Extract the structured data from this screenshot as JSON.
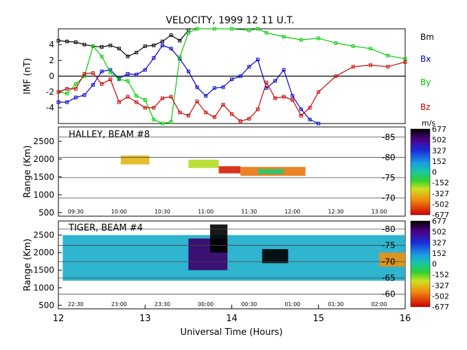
{
  "chart_data": {
    "type": "line",
    "title": "VELOCITY, 1999 12 11 U.T.",
    "xlabel": "Universal Time (Hours)",
    "xlim": [
      12,
      16
    ],
    "x_ticks": [
      "12",
      "13",
      "14",
      "15",
      "16"
    ],
    "panels": [
      {
        "id": "imf",
        "type": "line",
        "ylabel": "IMF (nT)",
        "ylim": [
          -6,
          6
        ],
        "y_ticks": [
          "4",
          "2",
          "0",
          "-2",
          "-4"
        ],
        "zero_line": true,
        "series": [
          {
            "name": "Bm",
            "color": "#000000",
            "x": [
              12.0,
              12.1,
              12.2,
              12.3,
              12.4,
              12.5,
              12.6,
              12.7,
              12.8,
              12.9,
              13.0,
              13.1,
              13.2,
              13.3,
              13.4,
              13.5
            ],
            "y": [
              4.5,
              4.4,
              4.3,
              4.0,
              3.8,
              3.7,
              3.9,
              3.5,
              2.5,
              3.0,
              3.8,
              3.9,
              4.4,
              5.2,
              4.5,
              5.8
            ]
          },
          {
            "name": "Bx",
            "color": "#0000cc",
            "x": [
              12.0,
              12.1,
              12.2,
              12.3,
              12.4,
              12.5,
              12.6,
              12.7,
              12.8,
              12.9,
              13.0,
              13.1,
              13.2,
              13.3,
              13.4,
              13.5,
              13.6,
              13.7,
              13.8,
              13.9,
              14.0,
              14.1,
              14.2,
              14.3,
              14.4,
              14.5,
              14.6,
              14.7,
              14.8,
              14.9,
              15.0
            ],
            "y": [
              -3.3,
              -3.3,
              -2.7,
              -2.4,
              -1.1,
              0.6,
              0.8,
              -0.3,
              0.3,
              0.2,
              0.8,
              2.3,
              3.9,
              3.5,
              2.2,
              0.6,
              -1.4,
              -2.5,
              -1.5,
              -1.4,
              -0.4,
              0.0,
              1.2,
              2.1,
              -1.5,
              -0.6,
              0.8,
              -2.5,
              -4.2,
              -5.5,
              -6.0
            ]
          },
          {
            "name": "By",
            "color": "#00cc00",
            "x": [
              12.0,
              12.1,
              12.2,
              12.3,
              12.4,
              12.5,
              12.6,
              12.7,
              12.8,
              12.9,
              13.0,
              13.1,
              13.2,
              13.3,
              13.4,
              13.5,
              13.6,
              13.8,
              14.0,
              14.2,
              14.3,
              14.4,
              14.6,
              14.8,
              15.0,
              15.2,
              15.4,
              15.6,
              15.8,
              16.0
            ],
            "y": [
              -2.0,
              -2.2,
              -1.0,
              0.0,
              3.8,
              2.5,
              0.5,
              -0.4,
              -0.6,
              -2.5,
              -3.0,
              -5.5,
              -6.0,
              -5.8,
              2.4,
              5.5,
              6.0,
              6.0,
              6.0,
              5.8,
              6.0,
              5.5,
              5.0,
              4.6,
              4.8,
              4.2,
              3.8,
              3.5,
              2.6,
              2.2
            ]
          },
          {
            "name": "Bz",
            "color": "#cc0000",
            "x": [
              12.0,
              12.1,
              12.2,
              12.3,
              12.4,
              12.5,
              12.6,
              12.7,
              12.8,
              12.9,
              13.0,
              13.1,
              13.2,
              13.3,
              13.4,
              13.5,
              13.6,
              13.7,
              13.8,
              13.9,
              14.0,
              14.1,
              14.2,
              14.3,
              14.4,
              14.5,
              14.6,
              14.7,
              14.8,
              14.9,
              15.0,
              15.2,
              15.4,
              15.6,
              15.8,
              16.0
            ],
            "y": [
              -2.0,
              -1.6,
              -1.6,
              0.3,
              0.4,
              -1.0,
              -0.4,
              -3.3,
              -2.6,
              -3.3,
              -4.0,
              -4.0,
              -2.8,
              -2.6,
              -4.6,
              -5.0,
              -3.2,
              -4.6,
              -5.2,
              -3.6,
              -4.8,
              -5.7,
              -5.4,
              -4.2,
              -0.8,
              -2.8,
              -2.6,
              -3.0,
              -5.0,
              -4.0,
              -2.0,
              0.0,
              1.2,
              1.4,
              1.2,
              1.8
            ]
          }
        ]
      },
      {
        "id": "halley",
        "type": "heatmap",
        "title": "HALLEY, BEAM #8",
        "ylabel": "Range (Km)",
        "ylim": [
          400,
          2900
        ],
        "y_ticks": [
          "2500",
          "2000",
          "1500",
          "1000",
          "500"
        ],
        "right_labels": [
          "-85",
          "-80",
          "-75",
          "-70"
        ],
        "time_labels": [
          "09:30",
          "10:00",
          "10:30",
          "11:00",
          "11:30",
          "12:00",
          "12:30",
          "13:00"
        ],
        "echoes": [
          {
            "t0": 12.72,
            "t1": 13.05,
            "r0": 1850,
            "r1": 2100,
            "value": -300
          },
          {
            "t0": 13.5,
            "t1": 13.85,
            "r0": 1750,
            "r1": 1980,
            "value": -180
          },
          {
            "t0": 13.85,
            "t1": 14.1,
            "r0": 1600,
            "r1": 1800,
            "value": -620
          },
          {
            "t0": 14.1,
            "t1": 14.85,
            "r0": 1530,
            "r1": 1780,
            "value": -450
          },
          {
            "t0": 14.3,
            "t1": 14.6,
            "r0": 1580,
            "r1": 1720,
            "value": -30
          }
        ]
      },
      {
        "id": "tiger",
        "type": "heatmap",
        "title": "TIGER, BEAM #4",
        "ylabel": "Range (Km)",
        "ylim": [
          400,
          2900
        ],
        "y_ticks": [
          "2500",
          "2000",
          "1500",
          "1000",
          "500"
        ],
        "right_labels": [
          "-80",
          "-75",
          "-70",
          "-65",
          "-60"
        ],
        "time_labels": [
          "22:30",
          "23:00",
          "23:30",
          "00:00",
          "00:30",
          "01:00",
          "01:30",
          "02:00"
        ],
        "echoes": [
          {
            "t0": 12.05,
            "t1": 16.0,
            "r0": 1200,
            "r1": 2500,
            "value": 100
          },
          {
            "t0": 13.5,
            "t1": 13.95,
            "r0": 1500,
            "r1": 2400,
            "value": 550
          },
          {
            "t0": 13.75,
            "t1": 13.95,
            "r0": 2000,
            "r1": 2800,
            "value": 677
          },
          {
            "t0": 14.35,
            "t1": 14.65,
            "r0": 1700,
            "r1": 2100,
            "value": 677
          },
          {
            "t0": 15.7,
            "t1": 16.0,
            "r0": 1600,
            "r1": 2000,
            "value": -400
          }
        ]
      }
    ],
    "colorbar": {
      "unit": "m/s",
      "ticks": [
        "677",
        "502",
        "327",
        "152",
        "0",
        "-152",
        "-327",
        "-502",
        "-677"
      ]
    }
  }
}
